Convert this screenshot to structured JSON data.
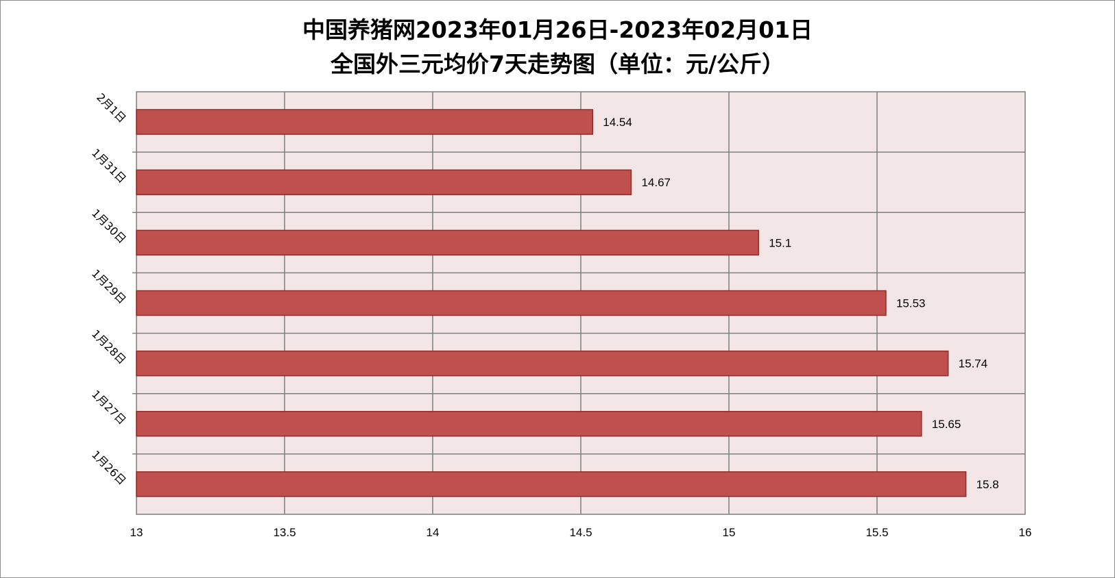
{
  "chart_data": {
    "type": "bar",
    "orientation": "horizontal",
    "title_line1": "中国养猪网2023年01月26日-2023年02月01日",
    "title_line2": "全国外三元均价7天走势图（单位：元/公斤）",
    "categories": [
      "2月1日",
      "1月31日",
      "1月30日",
      "1月29日",
      "1月28日",
      "1月27日",
      "1月26日"
    ],
    "values": [
      14.54,
      14.67,
      15.1,
      15.53,
      15.74,
      15.65,
      15.8
    ],
    "xlim": [
      13,
      16
    ],
    "xticks": [
      "13",
      "13.5",
      "14",
      "14.5",
      "15",
      "15.5",
      "16"
    ],
    "grid": true,
    "legend": "none",
    "colors": {
      "bar_fill": "#C0504D",
      "bar_stroke": "#8B2E2C",
      "plot_background": "#F2E6E6",
      "grid": "#7F7F7F"
    }
  }
}
